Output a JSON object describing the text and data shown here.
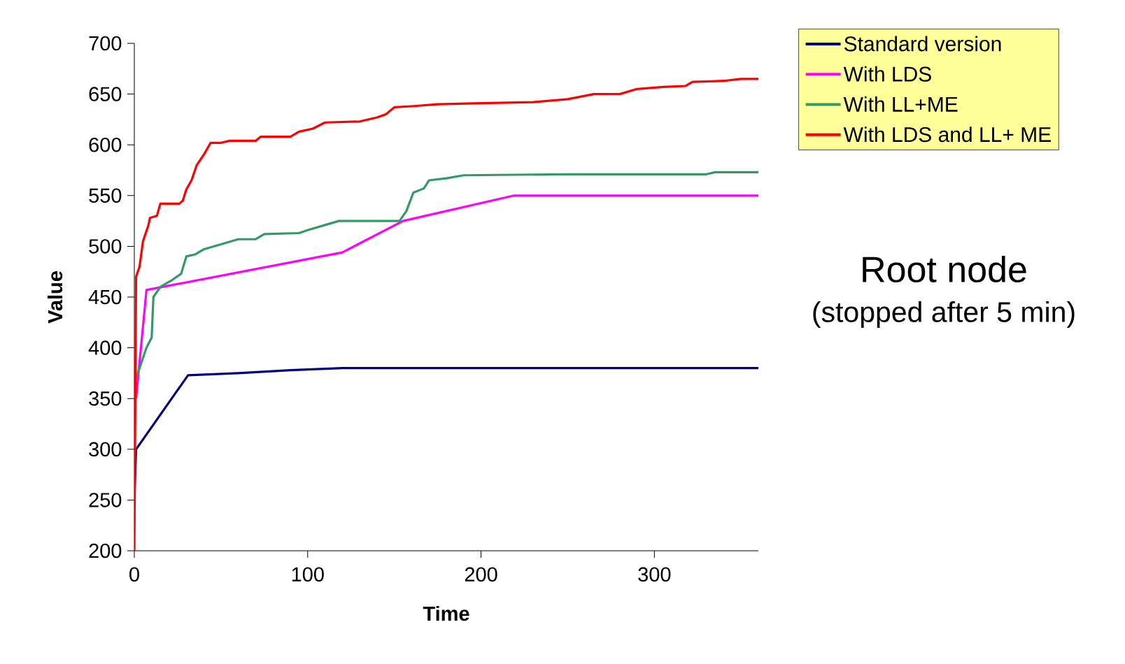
{
  "chart_data": {
    "type": "line",
    "xlabel": "Time",
    "ylabel": "Value",
    "annotations": [
      "Root node",
      "(stopped after 5 min)"
    ],
    "xlim": [
      0,
      360
    ],
    "xticks": [
      0,
      100,
      200,
      300
    ],
    "ylim": [
      200,
      700
    ],
    "yticks": [
      200,
      250,
      300,
      350,
      400,
      450,
      500,
      550,
      600,
      650,
      700
    ],
    "legend": "top right",
    "grid": false,
    "marker": "none",
    "line_style": "solid",
    "series": [
      {
        "name": "Standard version",
        "color": "#000080",
        "x": [
          0,
          1,
          31,
          60,
          90,
          120,
          360
        ],
        "values": [
          250,
          300,
          373,
          375,
          378,
          380,
          380
        ]
      },
      {
        "name": "With LDS",
        "color": "#ff00ff",
        "x": [
          1,
          7,
          120,
          155,
          219,
          360
        ],
        "values": [
          350,
          457,
          494,
          525,
          550,
          550
        ]
      },
      {
        "name": "With LL+ME",
        "color": "#339966",
        "x": [
          1,
          4,
          7,
          10,
          11,
          15,
          22,
          27,
          30,
          35,
          40,
          50,
          60,
          70,
          75,
          95,
          100,
          108,
          118,
          153,
          157,
          161,
          167,
          170,
          180,
          190,
          250,
          330,
          335,
          360
        ],
        "values": [
          370,
          385,
          400,
          410,
          450,
          460,
          467,
          473,
          490,
          492,
          497,
          502,
          507,
          507,
          512,
          513,
          516,
          520,
          525,
          525,
          535,
          553,
          557,
          565,
          567,
          570,
          571,
          571,
          573,
          573
        ]
      },
      {
        "name": "With LDS and  LL+ ME",
        "color": "#ff0000",
        "x": [
          0,
          1,
          3,
          5,
          8,
          9,
          13,
          15,
          26,
          28,
          30,
          33,
          36,
          40,
          44,
          50,
          55,
          70,
          73,
          90,
          95,
          103,
          110,
          130,
          140,
          145,
          150,
          160,
          175,
          200,
          230,
          250,
          265,
          280,
          290,
          305,
          318,
          322,
          340,
          350,
          360
        ],
        "values": [
          200,
          470,
          480,
          505,
          520,
          528,
          530,
          542,
          542,
          545,
          556,
          565,
          580,
          590,
          602,
          602,
          604,
          604,
          608,
          608,
          613,
          616,
          622,
          623,
          627,
          630,
          637,
          638,
          640,
          641,
          642,
          645,
          650,
          650,
          655,
          657,
          658,
          662,
          663,
          665,
          665
        ]
      }
    ]
  }
}
